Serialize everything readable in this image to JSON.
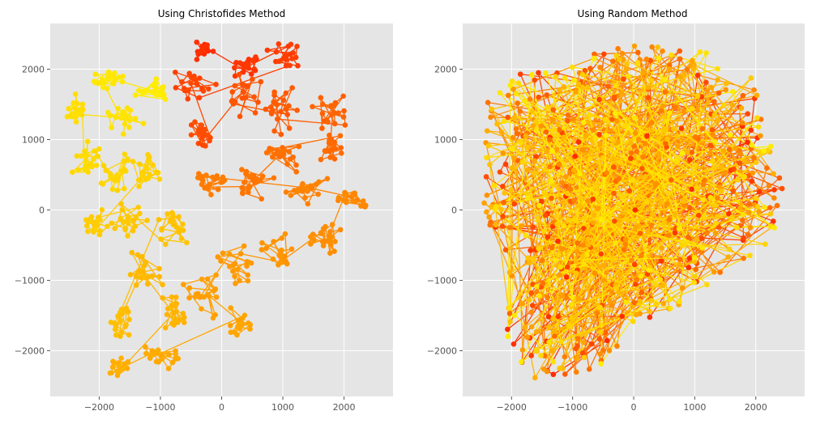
{
  "figure": {
    "style": "ggplot",
    "background": "#ffffff",
    "panel_background": "#e5e5e5",
    "grid_color": "#ffffff"
  },
  "chart_data": [
    {
      "type": "line",
      "title": "Using Christofides Method",
      "xlabel": "",
      "ylabel": "",
      "xlim": [
        -2800,
        2800
      ],
      "ylim": [
        -2650,
        2650
      ],
      "xticks": [
        -2000,
        -1000,
        0,
        1000,
        2000
      ],
      "yticks": [
        -2000,
        -1000,
        0,
        1000,
        2000
      ],
      "xtick_labels": [
        "−2000",
        "−1000",
        "0",
        "1000",
        "2000"
      ],
      "ytick_labels": [
        "−2000",
        "−1000",
        "0",
        "1000",
        "2000"
      ],
      "grid": true,
      "markers": true,
      "colormap": "autumn",
      "colormap_stops": [
        "#ff2a00",
        "#ff6a00",
        "#ff9d00",
        "#ffc800",
        "#ffee00"
      ],
      "points_per_region_estimate": 20,
      "path_regions": [
        {
          "center": [
            -300,
            2250
          ],
          "spread": [
            350,
            180
          ]
        },
        {
          "center": [
            400,
            2050
          ],
          "spread": [
            500,
            250
          ]
        },
        {
          "center": [
            1000,
            2200
          ],
          "spread": [
            400,
            220
          ]
        },
        {
          "center": [
            -450,
            1800
          ],
          "spread": [
            400,
            350
          ]
        },
        {
          "center": [
            -300,
            1050
          ],
          "spread": [
            300,
            250
          ]
        },
        {
          "center": [
            300,
            1650
          ],
          "spread": [
            450,
            400
          ]
        },
        {
          "center": [
            1000,
            1500
          ],
          "spread": [
            500,
            450
          ]
        },
        {
          "center": [
            1750,
            1400
          ],
          "spread": [
            350,
            350
          ]
        },
        {
          "center": [
            1800,
            900
          ],
          "spread": [
            300,
            300
          ]
        },
        {
          "center": [
            1000,
            800
          ],
          "spread": [
            450,
            300
          ]
        },
        {
          "center": [
            500,
            400
          ],
          "spread": [
            450,
            300
          ]
        },
        {
          "center": [
            -200,
            400
          ],
          "spread": [
            400,
            300
          ]
        },
        {
          "center": [
            1400,
            300
          ],
          "spread": [
            400,
            300
          ]
        },
        {
          "center": [
            2150,
            150
          ],
          "spread": [
            350,
            200
          ]
        },
        {
          "center": [
            1700,
            -400
          ],
          "spread": [
            400,
            300
          ]
        },
        {
          "center": [
            900,
            -600
          ],
          "spread": [
            400,
            350
          ]
        },
        {
          "center": [
            300,
            -800
          ],
          "spread": [
            450,
            400
          ]
        },
        {
          "center": [
            -300,
            -1200
          ],
          "spread": [
            400,
            400
          ]
        },
        {
          "center": [
            300,
            -1650
          ],
          "spread": [
            300,
            300
          ]
        },
        {
          "center": [
            -1000,
            -2100
          ],
          "spread": [
            500,
            250
          ]
        },
        {
          "center": [
            -1700,
            -2250
          ],
          "spread": [
            250,
            200
          ]
        },
        {
          "center": [
            -800,
            -1500
          ],
          "spread": [
            350,
            350
          ]
        },
        {
          "center": [
            -1300,
            -900
          ],
          "spread": [
            400,
            400
          ]
        },
        {
          "center": [
            -1650,
            -1550
          ],
          "spread": [
            300,
            450
          ]
        },
        {
          "center": [
            -800,
            -250
          ],
          "spread": [
            400,
            400
          ]
        },
        {
          "center": [
            -1500,
            -150
          ],
          "spread": [
            450,
            350
          ]
        },
        {
          "center": [
            -2050,
            -200
          ],
          "spread": [
            300,
            300
          ]
        },
        {
          "center": [
            -1200,
            500
          ],
          "spread": [
            400,
            400
          ]
        },
        {
          "center": [
            -1750,
            500
          ],
          "spread": [
            350,
            400
          ]
        },
        {
          "center": [
            -2200,
            700
          ],
          "spread": [
            300,
            400
          ]
        },
        {
          "center": [
            -2350,
            1350
          ],
          "spread": [
            250,
            350
          ]
        },
        {
          "center": [
            -1600,
            1350
          ],
          "spread": [
            400,
            350
          ]
        },
        {
          "center": [
            -1850,
            1850
          ],
          "spread": [
            350,
            150
          ]
        },
        {
          "center": [
            -1150,
            1700
          ],
          "spread": [
            350,
            250
          ]
        }
      ]
    },
    {
      "type": "line",
      "title": "Using Random Method",
      "xlabel": "",
      "ylabel": "",
      "xlim": [
        -2800,
        2800
      ],
      "ylim": [
        -2650,
        2650
      ],
      "xticks": [
        -2000,
        -1000,
        0,
        1000,
        2000
      ],
      "yticks": [
        -2000,
        -1000,
        0,
        1000,
        2000
      ],
      "xtick_labels": [
        "−2000",
        "−1000",
        "0",
        "1000",
        "2000"
      ],
      "ytick_labels": [
        "−2000",
        "−1000",
        "0",
        "1000",
        "2000"
      ],
      "grid": true,
      "markers": true,
      "colormap": "autumn",
      "colormap_stops": [
        "#ff2a00",
        "#ff6a00",
        "#ff9d00",
        "#ffc800",
        "#ffee00"
      ],
      "points_estimate": 680,
      "bounds_polygon": [
        [
          -2500,
          1400
        ],
        [
          -2100,
          1900
        ],
        [
          -300,
          2350
        ],
        [
          900,
          2450
        ],
        [
          2050,
          1850
        ],
        [
          2100,
          1300
        ],
        [
          2550,
          100
        ],
        [
          2150,
          -500
        ],
        [
          1200,
          -1100
        ],
        [
          300,
          -1600
        ],
        [
          -400,
          -2200
        ],
        [
          -1250,
          -2400
        ],
        [
          -1750,
          -2400
        ],
        [
          -2100,
          -1900
        ],
        [
          -2100,
          -800
        ],
        [
          -2450,
          -100
        ],
        [
          -2500,
          600
        ]
      ]
    }
  ]
}
